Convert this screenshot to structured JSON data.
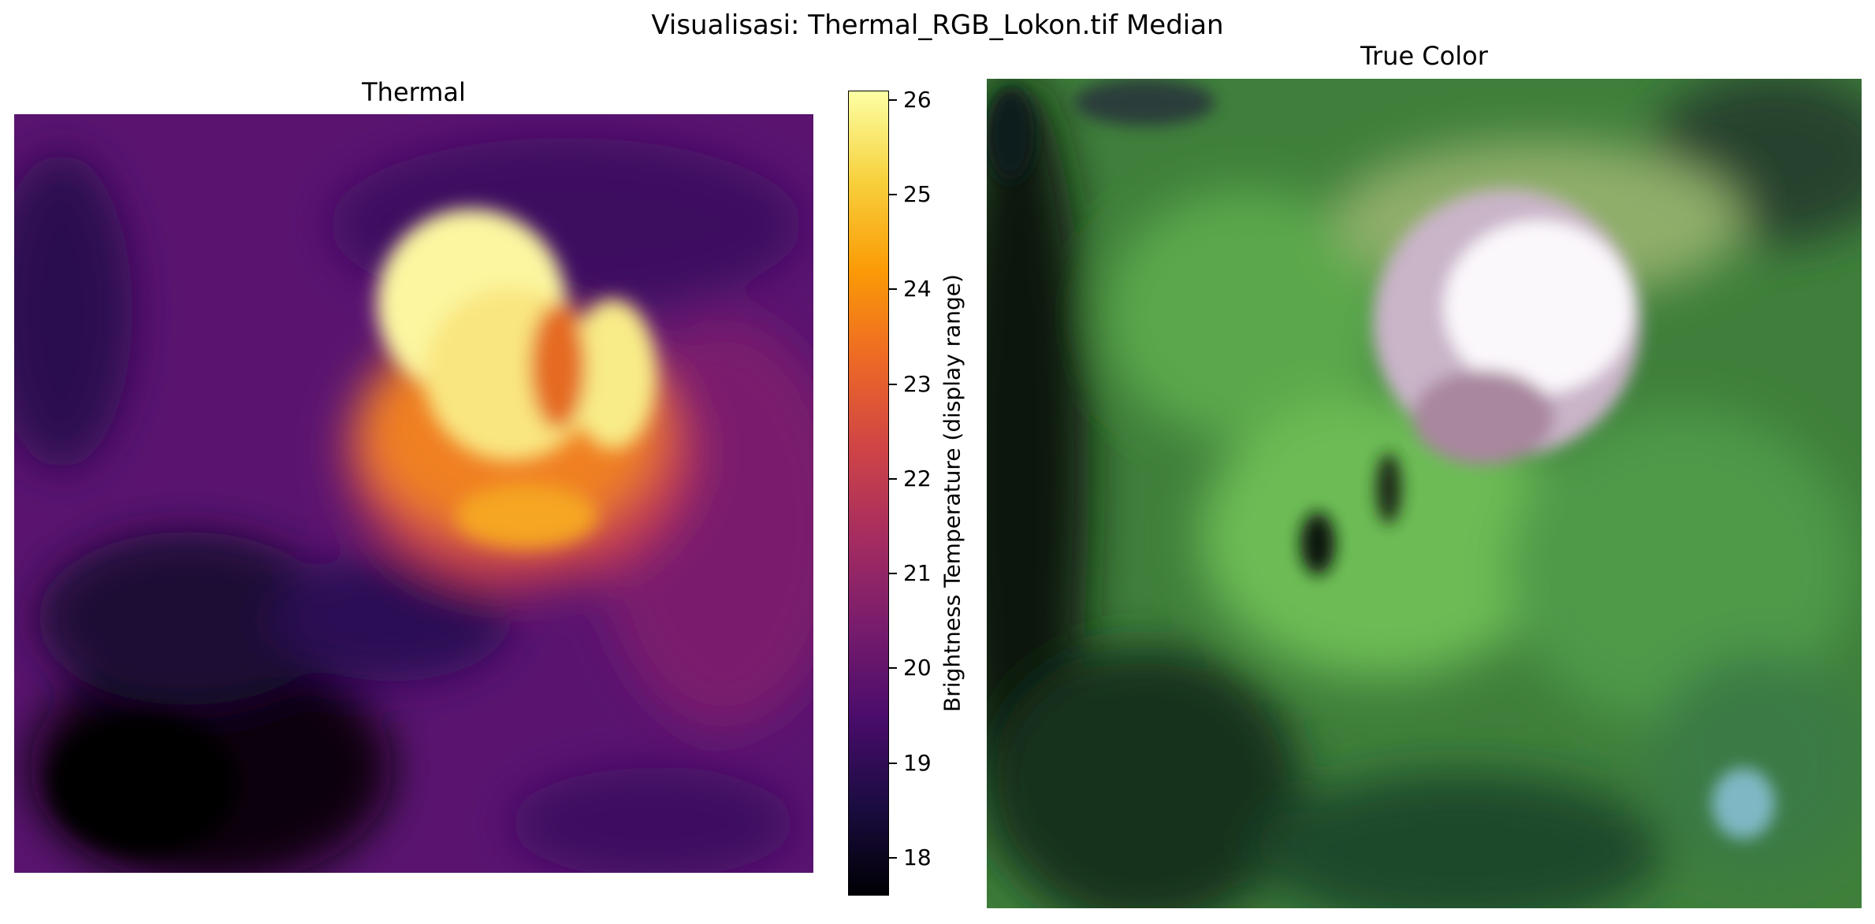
{
  "figure": {
    "suptitle": "Visualisasi: Thermal_RGB_Lokon.tif Median"
  },
  "thermal_panel": {
    "title": "Thermal",
    "colormap": "inferno",
    "colorbar": {
      "label": "Brightness Temperature (display range)",
      "min": 17.6,
      "max": 26.1,
      "ticks": [
        18,
        19,
        20,
        21,
        22,
        23,
        24,
        25,
        26
      ]
    }
  },
  "true_color_panel": {
    "title": "True Color"
  },
  "colors": {
    "inferno_stops": [
      "#000004",
      "#1b0c41",
      "#4a0c6b",
      "#781c6d",
      "#a52c60",
      "#cf4446",
      "#ed6925",
      "#fb9b06",
      "#f7d13d",
      "#fcffa4"
    ],
    "vegetation_green": "#4fa043",
    "crater_white": "#f4eef6"
  }
}
